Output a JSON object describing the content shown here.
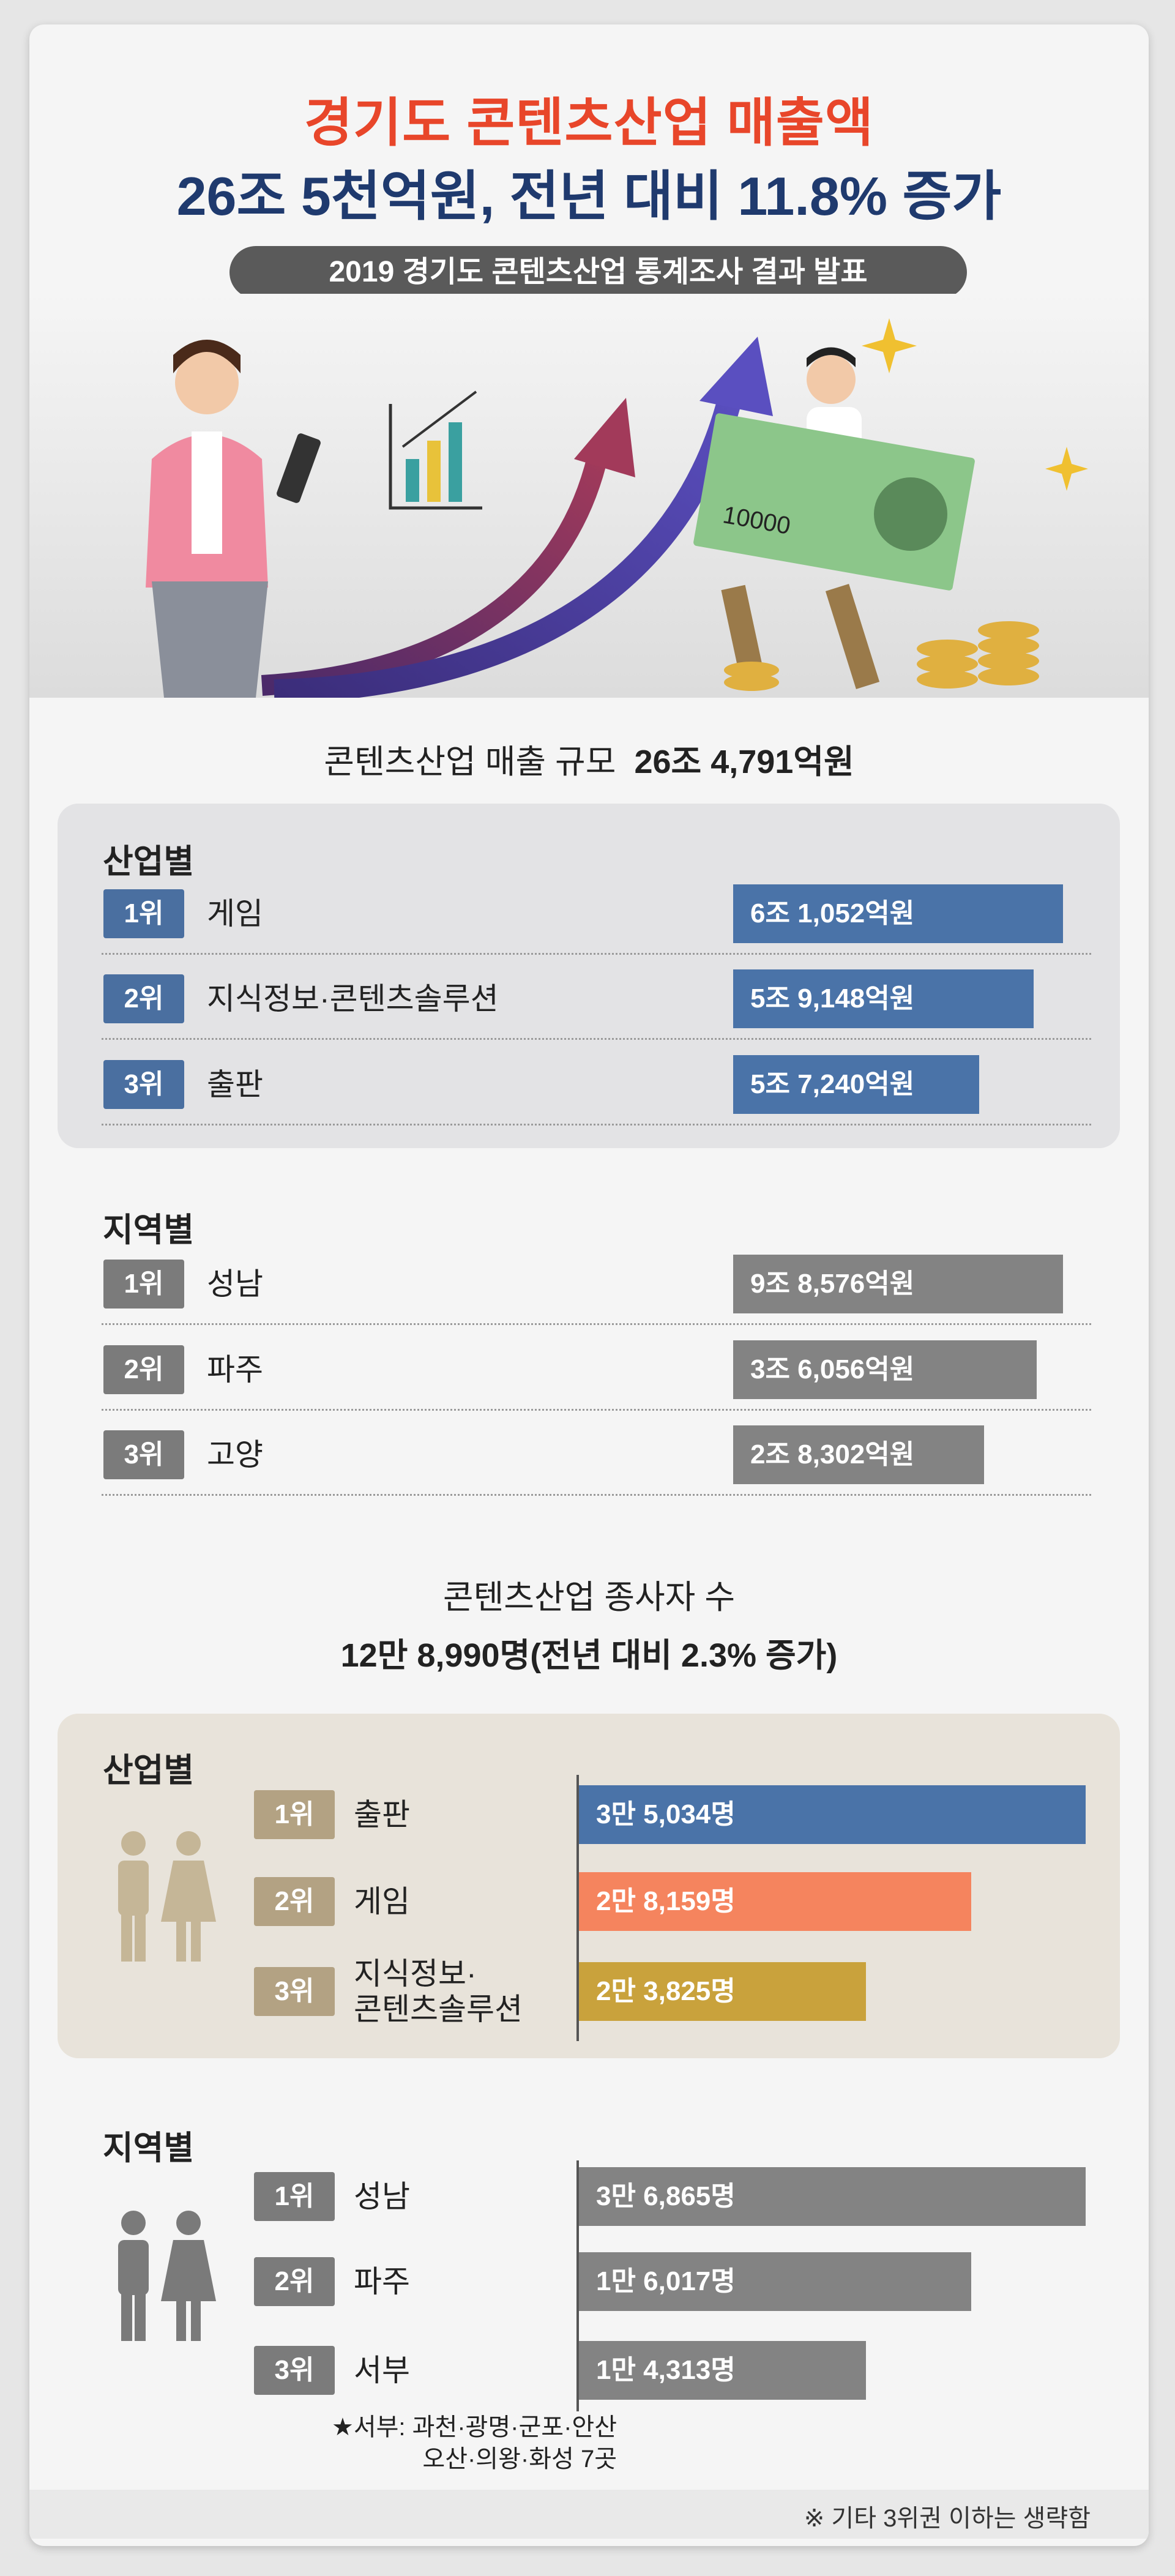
{
  "header": {
    "title_line1": "경기도 콘텐츠산업 매출액",
    "title_line2": "26조 5천억원, 전년 대비 11.8% 증가",
    "subtitle": "2019 경기도 콘텐츠산업 통계조사 결과 발표"
  },
  "illustration": {
    "banknote_text": "10000"
  },
  "revenue": {
    "label": "콘텐츠산업 매출 규모",
    "amount": "26조 4,791억원",
    "by_industry": {
      "heading": "산업별",
      "rows": [
        {
          "rank": "1위",
          "name": "게임",
          "value": "6조 1,052억원"
        },
        {
          "rank": "2위",
          "name": "지식정보·콘텐츠솔루션",
          "value": "5조 9,148억원"
        },
        {
          "rank": "3위",
          "name": "출판",
          "value": "5조 7,240억원"
        }
      ]
    },
    "by_region": {
      "heading": "지역별",
      "rows": [
        {
          "rank": "1위",
          "name": "성남",
          "value": "9조 8,576억원"
        },
        {
          "rank": "2위",
          "name": "파주",
          "value": "3조 6,056억원"
        },
        {
          "rank": "3위",
          "name": "고양",
          "value": "2조 8,302억원"
        }
      ]
    }
  },
  "employees": {
    "label": "콘텐츠산업 종사자 수",
    "total": "12만 8,990명(전년 대비 2.3% 증가)",
    "by_industry": {
      "heading": "산업별",
      "rows": [
        {
          "rank": "1위",
          "name": "출판",
          "value": "3만 5,034명"
        },
        {
          "rank": "2위",
          "name": "게임",
          "value": "2만 8,159명"
        },
        {
          "rank": "3위",
          "name": "지식정보·\n콘텐츠솔루션",
          "value": "2만 3,825명"
        }
      ]
    },
    "by_region": {
      "heading": "지역별",
      "rows": [
        {
          "rank": "1위",
          "name": "성남",
          "value": "3만 6,865명"
        },
        {
          "rank": "2위",
          "name": "파주",
          "value": "1만 6,017명"
        },
        {
          "rank": "3위",
          "name": "서부",
          "value": "1만 4,313명"
        }
      ],
      "note": [
        "★서부: 과천·광명·군포·안산",
        "오산·의왕·화성 7곳"
      ]
    }
  },
  "footer": {
    "note": "※ 기타 3위권 이하는 생략함"
  }
}
